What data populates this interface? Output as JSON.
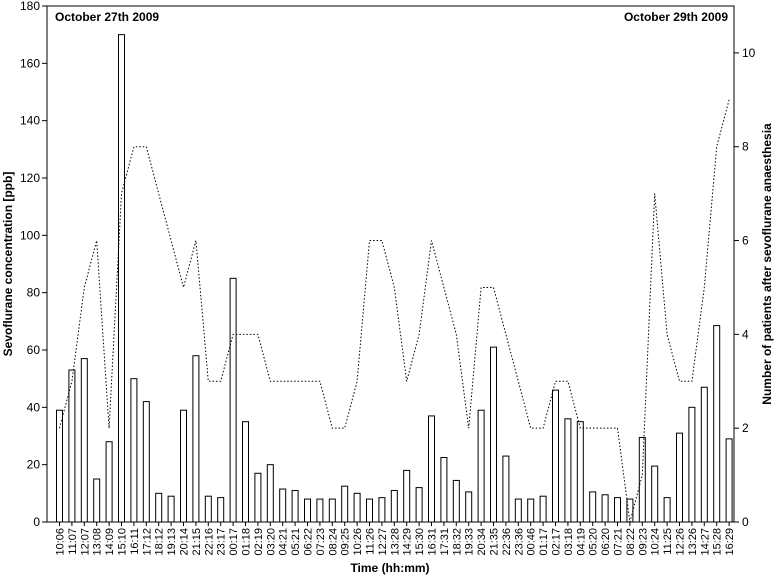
{
  "chart_data": {
    "type": "bar",
    "title": "",
    "xlabel": "Time (hh:mm)",
    "ylabel": "Sevoflurane concentration [ppb]",
    "y2label": "Number of patients after sevoflurane anaesthesia",
    "ylim": [
      0,
      180
    ],
    "y2lim": [
      0,
      11
    ],
    "yticks": [
      0,
      20,
      40,
      60,
      80,
      100,
      120,
      140,
      160,
      180
    ],
    "y2ticks": [
      0,
      2,
      4,
      6,
      8,
      10
    ],
    "grid": false,
    "annotations": {
      "left": "October 27th 2009",
      "right": "October 29th 2009"
    },
    "categories": [
      "10:06",
      "11:07",
      "12:07",
      "13:08",
      "14:09",
      "15:10",
      "16:11",
      "17:12",
      "18:12",
      "19:13",
      "20:14",
      "21:15",
      "22:16",
      "23:17",
      "00:17",
      "01:18",
      "02:19",
      "03:20",
      "04:21",
      "05:21",
      "06:22",
      "07:23",
      "08:24",
      "09:25",
      "10:26",
      "11:26",
      "12:27",
      "13:28",
      "14:29",
      "15:30",
      "16:31",
      "17:31",
      "18:32",
      "19:33",
      "20:34",
      "21:35",
      "22:36",
      "23:36",
      "00:46",
      "01:17",
      "02:17",
      "03:18",
      "04:19",
      "05:20",
      "06:20",
      "07:21",
      "08:22",
      "09:23",
      "10:24",
      "11:25",
      "12:26",
      "13:26",
      "14:27",
      "15:28",
      "16:29"
    ],
    "series": [
      {
        "type": "bar",
        "axis": "left",
        "values": [
          39,
          53,
          57,
          15,
          28,
          170,
          50,
          42,
          10,
          9,
          39,
          58,
          9,
          8.5,
          85,
          35,
          17,
          20,
          11.5,
          11,
          8,
          8,
          8,
          12.5,
          10,
          8,
          8.5,
          11,
          18,
          12,
          37,
          22.5,
          14.5,
          10.5,
          39,
          61,
          23,
          8,
          8,
          9,
          46,
          36,
          35,
          10.5,
          9.5,
          8.5,
          8,
          29.5,
          19.5,
          8.5,
          31,
          40,
          47,
          68.5,
          29
        ]
      },
      {
        "type": "line",
        "axis": "right",
        "style": "dotted",
        "values": [
          2,
          3,
          5,
          6,
          2,
          7,
          8,
          8,
          7,
          6,
          5,
          6,
          3,
          3,
          4,
          4,
          4,
          3,
          3,
          3,
          3,
          3,
          2,
          2,
          3,
          6,
          6,
          5,
          3,
          4,
          6,
          5,
          4,
          2,
          5,
          5,
          4,
          3,
          2,
          2,
          3,
          3,
          2,
          2,
          2,
          2,
          0,
          1,
          7,
          4,
          3,
          3,
          5,
          8,
          9
        ]
      }
    ]
  }
}
